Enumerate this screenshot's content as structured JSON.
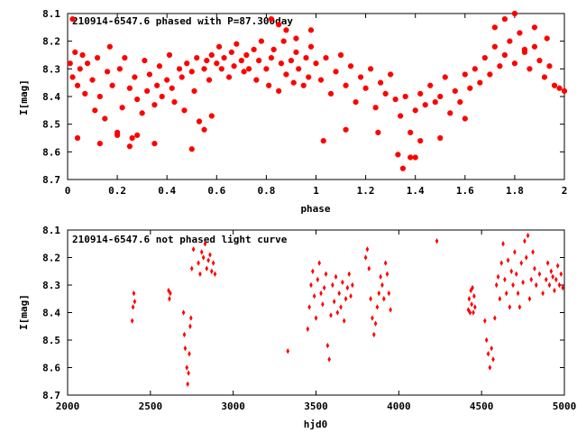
{
  "chart_data": [
    {
      "type": "scatter",
      "title": "210914-6547.6 phased with P=87.300day",
      "xlabel": "phase",
      "ylabel": "I[mag]",
      "xlim": [
        0,
        2
      ],
      "ylim": [
        8.7,
        8.1
      ],
      "y_inverted": true,
      "x_ticks": [
        "0",
        "0.2",
        "0.4",
        "0.6",
        "0.8",
        "1",
        "1.2",
        "1.4",
        "1.6",
        "1.8",
        "2"
      ],
      "y_ticks": [
        "8.1",
        "8.2",
        "8.3",
        "8.4",
        "8.5",
        "8.6",
        "8.7"
      ],
      "marker_color": "#ff0000",
      "series": [
        {
          "x": [
            0.01,
            0.02,
            0.03,
            0.04,
            0.05,
            0.06,
            0.07,
            0.08,
            0.1,
            0.11,
            0.12,
            0.13,
            0.15,
            0.16,
            0.17,
            0.18,
            0.2,
            0.21,
            0.22,
            0.23,
            0.25,
            0.26,
            0.27,
            0.28,
            0.3,
            0.31,
            0.32,
            0.33,
            0.35,
            0.36,
            0.37,
            0.38,
            0.4,
            0.41,
            0.42,
            0.43,
            0.45,
            0.46,
            0.47,
            0.48,
            0.5,
            0.51,
            0.52,
            0.53,
            0.55,
            0.56,
            0.57,
            0.58,
            0.6,
            0.61,
            0.62,
            0.63,
            0.65,
            0.66,
            0.67,
            0.68,
            0.7,
            0.71,
            0.72,
            0.73,
            0.75,
            0.76,
            0.77,
            0.78,
            0.8,
            0.81,
            0.82,
            0.83,
            0.85,
            0.86,
            0.87,
            0.88,
            0.9,
            0.91,
            0.92,
            0.93,
            0.95,
            0.96,
            0.97,
            0.98,
            1.0,
            1.02,
            1.04,
            1.06,
            1.08,
            1.1,
            1.12,
            1.14,
            1.16,
            1.18,
            1.2,
            1.22,
            1.24,
            1.26,
            1.28,
            1.3,
            1.32,
            1.34,
            1.36,
            1.38,
            1.4,
            1.42,
            1.44,
            1.46,
            1.48,
            1.5,
            1.52,
            1.54,
            1.56,
            1.58,
            1.6,
            1.62,
            1.64,
            1.66,
            1.68,
            1.7,
            1.72,
            1.74,
            1.76,
            1.78,
            1.8,
            1.82,
            1.84,
            1.86,
            1.88,
            1.9,
            1.92,
            1.94,
            1.96,
            1.98
          ],
          "y": [
            8.28,
            8.33,
            8.24,
            8.36,
            8.3,
            8.25,
            8.39,
            8.28,
            8.34,
            8.45,
            8.26,
            8.4,
            8.48,
            8.31,
            8.22,
            8.36,
            8.53,
            8.3,
            8.44,
            8.26,
            8.37,
            8.55,
            8.33,
            8.41,
            8.46,
            8.27,
            8.38,
            8.32,
            8.43,
            8.36,
            8.29,
            8.4,
            8.34,
            8.25,
            8.37,
            8.42,
            8.3,
            8.33,
            8.45,
            8.28,
            8.31,
            8.38,
            8.26,
            8.49,
            8.3,
            8.27,
            8.34,
            8.25,
            8.28,
            8.22,
            8.3,
            8.26,
            8.33,
            8.24,
            8.29,
            8.21,
            8.27,
            8.31,
            8.25,
            8.3,
            8.23,
            8.34,
            8.27,
            8.2,
            8.3,
            8.36,
            8.26,
            8.23,
            8.38,
            8.28,
            8.2,
            8.32,
            8.27,
            8.35,
            8.24,
            8.3,
            8.36,
            8.26,
            8.33,
            8.22,
            8.28,
            8.34,
            8.26,
            8.39,
            8.31,
            8.25,
            8.36,
            8.29,
            8.42,
            8.33,
            8.37,
            8.3,
            8.44,
            8.35,
            8.39,
            8.32,
            8.41,
            8.47,
            8.4,
            8.53,
            8.45,
            8.39,
            8.43,
            8.36,
            8.42,
            8.4,
            8.33,
            8.46,
            8.38,
            8.42,
            8.32,
            8.37,
            8.3,
            8.35,
            8.26,
            8.32,
            8.22,
            8.29,
            8.25,
            8.2,
            8.28,
            8.17,
            8.24,
            8.3,
            8.22,
            8.27,
            8.33,
            8.29,
            8.36,
            8.37
          ],
          "marker": "star"
        },
        {
          "x": [
            0.02,
            0.04,
            0.13,
            0.2,
            0.25,
            0.28,
            0.35,
            0.5,
            0.53,
            0.55,
            0.58,
            0.82,
            0.85,
            0.88,
            0.92,
            0.98,
            1.03,
            1.12,
            1.25,
            1.33,
            1.35,
            1.38,
            1.4,
            1.42,
            1.5,
            1.6,
            1.72,
            1.76,
            1.8,
            1.84,
            1.88,
            1.93,
            2.0
          ],
          "y": [
            8.12,
            8.55,
            8.57,
            8.54,
            8.58,
            8.54,
            8.57,
            8.59,
            8.49,
            8.52,
            8.47,
            8.12,
            8.14,
            8.16,
            8.19,
            8.16,
            8.56,
            8.52,
            8.53,
            8.61,
            8.66,
            8.62,
            8.62,
            8.56,
            8.55,
            8.48,
            8.15,
            8.12,
            8.1,
            8.23,
            8.15,
            8.19,
            8.38
          ],
          "marker": "star"
        }
      ]
    },
    {
      "type": "scatter",
      "title": "210914-6547.6 not phased light curve",
      "xlabel": "hjd0",
      "ylabel": "I[mag]",
      "xlim": [
        2000,
        5000
      ],
      "ylim": [
        8.7,
        8.1
      ],
      "y_inverted": true,
      "x_ticks": [
        "2000",
        "2500",
        "3000",
        "3500",
        "4000",
        "4500",
        "5000"
      ],
      "y_ticks": [
        "8.1",
        "8.2",
        "8.3",
        "8.4",
        "8.5",
        "8.6",
        "8.7"
      ],
      "marker_color": "#ff0000",
      "series": [
        {
          "x": [
            2390,
            2395,
            2400,
            2405,
            2610,
            2615,
            2620,
            2700,
            2705,
            2710,
            2720,
            2725,
            2730,
            2735,
            2740,
            2745,
            2750,
            2760,
            2790,
            2800,
            2810,
            2820,
            2830,
            2840,
            2850,
            2860,
            2870,
            2880,
            2890,
            3330,
            3450,
            3460,
            3470,
            3480,
            3490,
            3500,
            3510,
            3520,
            3530,
            3540,
            3550,
            3560,
            3570,
            3580,
            3590,
            3600,
            3610,
            3620,
            3630,
            3640,
            3650,
            3660,
            3670,
            3680,
            3690,
            3700,
            3710,
            3720,
            3800,
            3810,
            3820,
            3830,
            3840,
            3850,
            3860,
            3870,
            3880,
            3890,
            3900,
            3910,
            3920,
            3930,
            3940,
            3950,
            4230,
            4420,
            4425,
            4430,
            4435,
            4440,
            4445,
            4450,
            4455,
            4460,
            4520,
            4530,
            4540,
            4550,
            4560,
            4570,
            4580,
            4590,
            4600,
            4610,
            4620,
            4630,
            4640,
            4650,
            4660,
            4670,
            4680,
            4690,
            4700,
            4710,
            4720,
            4730,
            4740,
            4750,
            4760,
            4770,
            4780,
            4790,
            4800,
            4810,
            4820,
            4830,
            4850,
            4870,
            4890,
            4900,
            4910,
            4920,
            4930,
            4940,
            4950,
            4960,
            4970,
            4980,
            4990
          ],
          "y": [
            8.43,
            8.38,
            8.33,
            8.36,
            8.32,
            8.35,
            8.33,
            8.4,
            8.48,
            8.53,
            8.6,
            8.66,
            8.62,
            8.55,
            8.45,
            8.42,
            8.24,
            8.17,
            8.22,
            8.26,
            8.18,
            8.2,
            8.15,
            8.24,
            8.21,
            8.19,
            8.25,
            8.22,
            8.26,
            8.54,
            8.46,
            8.38,
            8.3,
            8.25,
            8.34,
            8.42,
            8.28,
            8.22,
            8.33,
            8.37,
            8.31,
            8.26,
            8.52,
            8.57,
            8.41,
            8.3,
            8.36,
            8.27,
            8.4,
            8.33,
            8.38,
            8.29,
            8.43,
            8.35,
            8.31,
            8.26,
            8.34,
            8.3,
            8.2,
            8.17,
            8.24,
            8.35,
            8.42,
            8.48,
            8.44,
            8.38,
            8.33,
            8.27,
            8.3,
            8.35,
            8.22,
            8.26,
            8.33,
            8.39,
            8.14,
            8.39,
            8.35,
            8.4,
            8.32,
            8.37,
            8.31,
            8.4,
            8.34,
            8.38,
            8.43,
            8.5,
            8.55,
            8.6,
            8.53,
            8.57,
            8.42,
            8.3,
            8.27,
            8.35,
            8.22,
            8.15,
            8.28,
            8.33,
            8.21,
            8.38,
            8.25,
            8.3,
            8.18,
            8.26,
            8.33,
            8.38,
            8.22,
            8.29,
            8.14,
            8.2,
            8.12,
            8.35,
            8.28,
            8.18,
            8.24,
            8.3,
            8.26,
            8.33,
            8.28,
            8.22,
            8.3,
            8.25,
            8.27,
            8.32,
            8.28,
            8.23,
            8.3,
            8.26,
            8.31
          ],
          "marker": "diamond"
        }
      ]
    }
  ]
}
